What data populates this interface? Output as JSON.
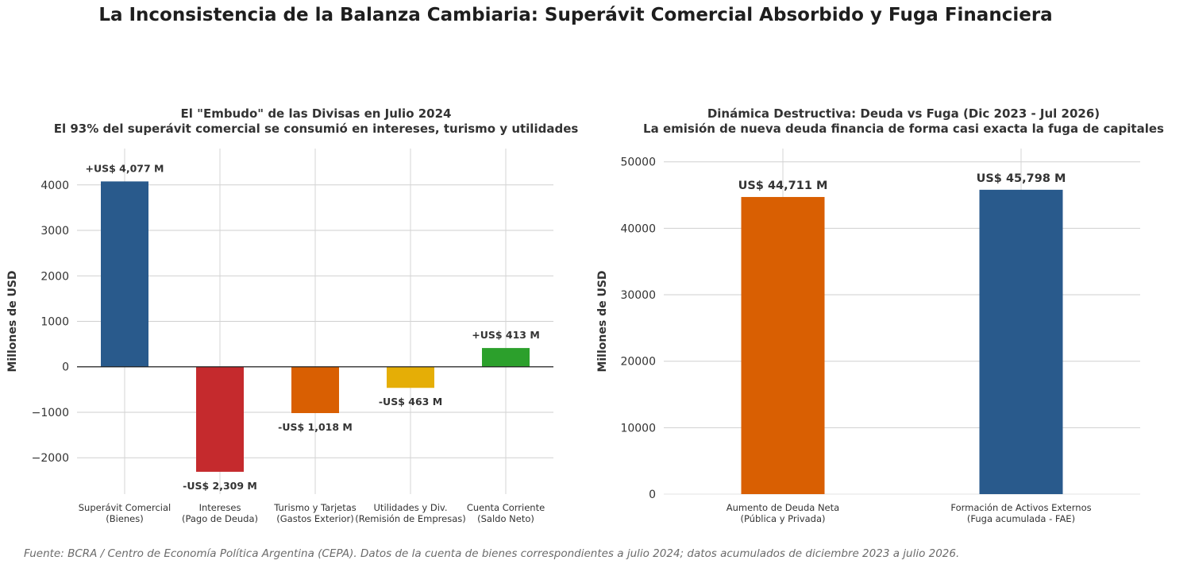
{
  "title": "La Inconsistencia de la Balanza Cambiaria: Superávit Comercial Absorbido y Fuga Financiera",
  "footer": "Fuente: BCRA / Centro de Economía Política Argentina (CEPA). Datos de la cuenta de bienes correspondientes a julio 2024; datos acumulados de diciembre 2023 a julio 2026.",
  "chart_data": [
    {
      "type": "bar",
      "title": "El \"Embudo\" de las Divisas en Julio 2024",
      "subtitle": "El 93% del superávit comercial se consumió en intereses, turismo y utilidades",
      "xlabel": "",
      "ylabel": "Millones de USD",
      "ylim": [
        -2800,
        4800
      ],
      "yticks": [
        -2000,
        -1000,
        0,
        1000,
        2000,
        3000,
        4000
      ],
      "ytick_labels": [
        "−2000",
        "−1000",
        "0",
        "1000",
        "2000",
        "3000",
        "4000"
      ],
      "grid": true,
      "categories": [
        [
          "Superávit Comercial",
          "(Bienes)"
        ],
        [
          "Intereses",
          "(Pago de Deuda)"
        ],
        [
          "Turismo y Tarjetas",
          "(Gastos Exterior)"
        ],
        [
          "Utilidades y Div.",
          "(Remisión de Empresas)"
        ],
        [
          "Cuenta Corriente",
          "(Saldo Neto)"
        ]
      ],
      "values": [
        4077,
        -2309,
        -1018,
        -463,
        413
      ],
      "data_labels": [
        "+US$ 4,077 M",
        "-US$ 2,309 M",
        "-US$ 1,018 M",
        "-US$ 463 M",
        "+US$ 413 M"
      ],
      "colors": [
        "#295a8c",
        "#c52a2d",
        "#d95f02",
        "#e5ae06",
        "#2ca02c"
      ]
    },
    {
      "type": "bar",
      "title": "Dinámica Destructiva: Deuda vs Fuga (Dic 2023 - Jul 2026)",
      "subtitle": "La emisión de nueva deuda financia de forma casi exacta la fuga de capitales",
      "xlabel": "",
      "ylabel": "Millones de USD",
      "ylim": [
        0,
        52000
      ],
      "yticks": [
        0,
        10000,
        20000,
        30000,
        40000,
        50000
      ],
      "ytick_labels": [
        "0",
        "10000",
        "20000",
        "30000",
        "40000",
        "50000"
      ],
      "grid": true,
      "categories": [
        [
          "Aumento de Deuda Neta",
          "(Pública y Privada)"
        ],
        [
          "Formación de Activos Externos",
          "(Fuga acumulada - FAE)"
        ]
      ],
      "values": [
        44711,
        45798
      ],
      "data_labels": [
        "US$ 44,711 M",
        "US$ 45,798 M"
      ],
      "colors": [
        "#d95f02",
        "#295a8c"
      ]
    }
  ]
}
